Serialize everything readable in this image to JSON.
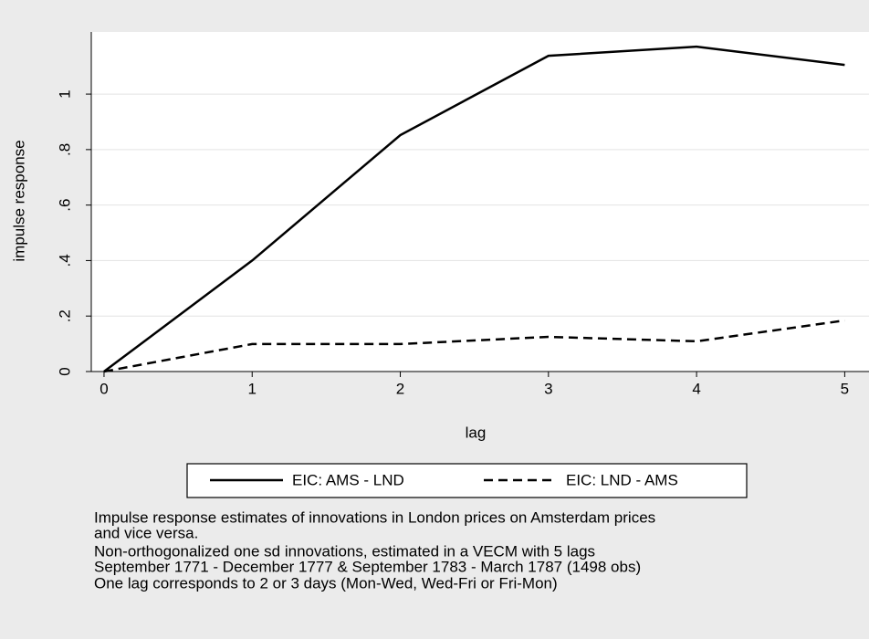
{
  "chart_data": {
    "type": "line",
    "x": [
      0,
      1,
      2,
      3,
      4,
      5
    ],
    "series": [
      {
        "name": "EIC: AMS - LND",
        "color": "#000000",
        "dash": "solid",
        "values": [
          0,
          0.4,
          0.852,
          1.138,
          1.171,
          1.105
        ]
      },
      {
        "name": "EIC: LND - AMS",
        "color": "#000000",
        "dash": "dashed",
        "values": [
          0,
          0.099,
          0.099,
          0.125,
          0.109,
          0.184
        ]
      }
    ],
    "xlabel": "lag",
    "ylabel": "impulse response",
    "xlim": [
      -0.086,
      5.09
    ],
    "xticks": [
      0,
      1,
      2,
      3,
      4,
      5
    ],
    "ylim": [
      0,
      1.224
    ],
    "yticks": [
      0,
      {
        "value": 0.2,
        "label": ".2"
      },
      {
        "value": 0.4,
        "label": ".4"
      },
      {
        "value": 0.6,
        "label": ".6"
      },
      {
        "value": 0.8,
        "label": ".8"
      },
      1
    ],
    "grid": true,
    "legend": "bottom",
    "notes": [
      "Impulse response estimates of innovations in London prices on Amsterdam prices",
      "and vice versa.",
      "Non-orthogonalized one sd innovations, estimated in a VECM with 5 lags",
      "September 1771 - December 1777 & September 1783 - March 1787 (1498 obs)",
      "One lag corresponds to 2 or 3 days (Mon-Wed, Wed-Fri or Fri-Mon)"
    ]
  }
}
